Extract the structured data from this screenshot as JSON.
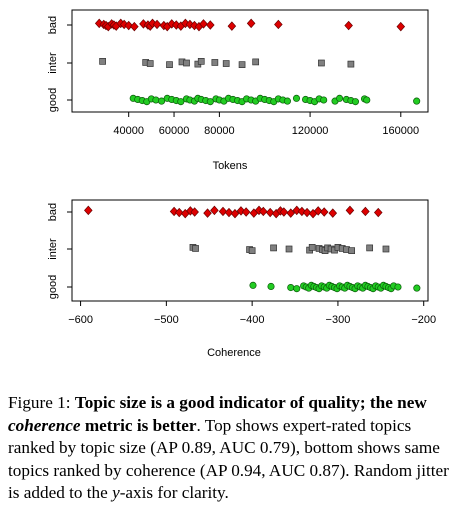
{
  "chart_data": [
    {
      "type": "scatter",
      "xlabel": "Tokens",
      "categories": [
        "good",
        "inter",
        "bad"
      ],
      "xticks": [
        40000,
        60000,
        80000,
        120000,
        160000
      ],
      "xtick_labels": [
        "40000",
        "60000",
        "80000",
        "120000",
        "160000"
      ],
      "xlim": [
        15000,
        172000
      ],
      "series": [
        {
          "name": "bad",
          "color": "#dd0000",
          "marker": "diamond",
          "values": [
            27000,
            29000,
            30000,
            31000,
            32500,
            33500,
            34500,
            36500,
            38000,
            40000,
            42500,
            46500,
            48500,
            49500,
            50500,
            52500,
            55500,
            57000,
            59000,
            61000,
            63000,
            65000,
            67000,
            69000,
            71000,
            73000,
            76000,
            85500,
            94000,
            106000,
            137000,
            160000
          ]
        },
        {
          "name": "inter",
          "color": "#808080",
          "marker": "square",
          "values": [
            28500,
            47500,
            49500,
            58000,
            63500,
            65500,
            70500,
            72000,
            78000,
            83000,
            90000,
            96000,
            125000,
            138000
          ]
        },
        {
          "name": "good",
          "color": "#22cc22",
          "marker": "circle",
          "values": [
            42000,
            44000,
            46000,
            48000,
            50000,
            52000,
            54500,
            57000,
            59000,
            61000,
            63000,
            65500,
            67000,
            69000,
            70500,
            72000,
            74000,
            76000,
            78500,
            80000,
            82000,
            84000,
            86000,
            88000,
            90000,
            92000,
            94000,
            96000,
            98000,
            100000,
            102000,
            104000,
            106000,
            108000,
            110000,
            114000,
            118000,
            120000,
            122000,
            124000,
            126000,
            131000,
            133000,
            136000,
            138000,
            140000,
            144000,
            145000,
            167000
          ]
        }
      ]
    },
    {
      "type": "scatter",
      "xlabel": "Coherence",
      "categories": [
        "good",
        "inter",
        "bad"
      ],
      "xticks": [
        -600,
        -500,
        -400,
        -300,
        -200
      ],
      "xtick_labels": [
        "−600",
        "−500",
        "−400",
        "−300",
        "−200"
      ],
      "xlim": [
        -610,
        -195
      ],
      "series": [
        {
          "name": "bad",
          "color": "#dd0000",
          "marker": "diamond",
          "values": [
            -591,
            -491,
            -485,
            -478,
            -472,
            -467,
            -452,
            -444,
            -434,
            -427,
            -420,
            -413,
            -407,
            -398,
            -392,
            -387,
            -379,
            -372,
            -367,
            -363,
            -355,
            -348,
            -342,
            -336,
            -329,
            -323,
            -316,
            -306,
            -286,
            -268,
            -253
          ]
        },
        {
          "name": "inter",
          "color": "#808080",
          "marker": "square",
          "values": [
            -469,
            -466,
            -403,
            -400,
            -375,
            -357,
            -333,
            -330,
            -322,
            -318,
            -315,
            -312,
            -308,
            -304,
            -300,
            -295,
            -290,
            -284,
            -263,
            -244
          ]
        },
        {
          "name": "good",
          "color": "#22cc22",
          "marker": "circle",
          "values": [
            -399,
            -378,
            -355,
            -348,
            -340,
            -337,
            -334,
            -331,
            -328,
            -325,
            -322,
            -319,
            -316,
            -313,
            -310,
            -307,
            -304,
            -301,
            -298,
            -295,
            -292,
            -289,
            -286,
            -283,
            -280,
            -277,
            -274,
            -271,
            -268,
            -265,
            -262,
            -259,
            -256,
            -253,
            -250,
            -247,
            -244,
            -241,
            -238,
            -235,
            -230,
            -208
          ]
        }
      ]
    }
  ],
  "caption": {
    "lead": "Figure 1: ",
    "bold": "Topic size is a good indicator of quality; the new ",
    "bold_italic": "coherence",
    "bold_end": " metric is better",
    "rest1": ". Top shows expert-rated topics ranked by topic size (AP 0.89, AUC 0.79), bottom shows same topics ranked by coherence (AP 0.94, AUC 0.87). Random jitter is added to the ",
    "var": "y",
    "rest2": "-axis for clarity."
  }
}
